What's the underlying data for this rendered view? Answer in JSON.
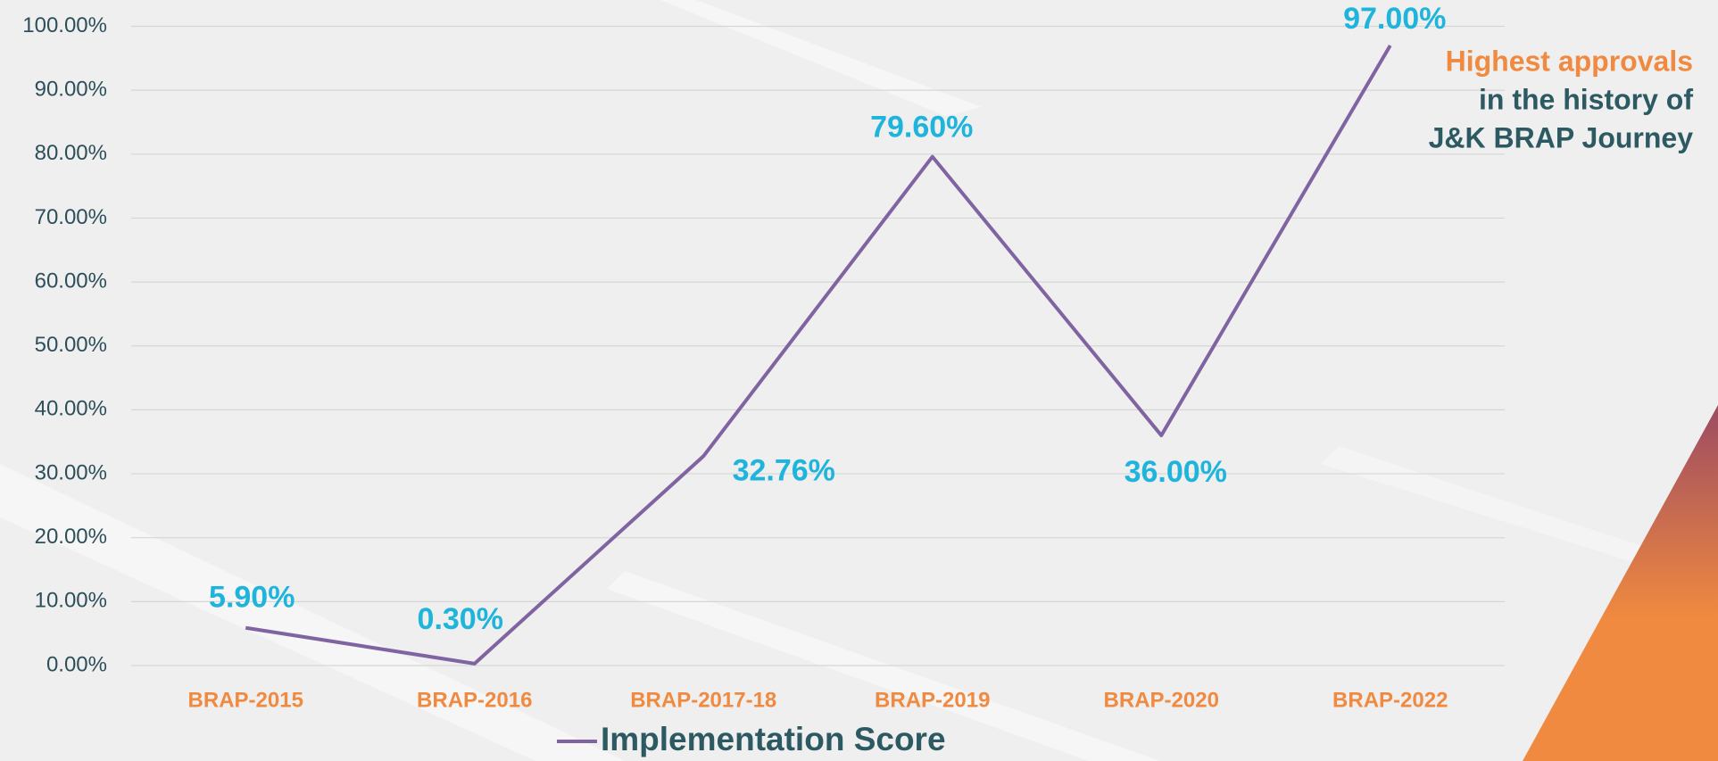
{
  "chart_data": {
    "type": "line",
    "categories": [
      "BRAP-2015",
      "BRAP-2016",
      "BRAP-2017-18",
      "BRAP-2019",
      "BRAP-2020",
      "BRAP-2022"
    ],
    "series": [
      {
        "name": "Implementation Score",
        "color": "#8064a2",
        "values": [
          5.9,
          0.3,
          32.76,
          79.6,
          36,
          97
        ],
        "value_labels": [
          "5.90%",
          "0.30%",
          "32.76%",
          "79.60%",
          "36.00%",
          "97.00%"
        ]
      }
    ],
    "ylim": [
      0,
      100
    ],
    "yticks": [
      {
        "value": 0,
        "label": "0.00%"
      },
      {
        "value": 10,
        "label": "10.00%"
      },
      {
        "value": 20,
        "label": "20.00%"
      },
      {
        "value": 30,
        "label": "30.00%"
      },
      {
        "value": 40,
        "label": "40.00%"
      },
      {
        "value": 50,
        "label": "50.00%"
      },
      {
        "value": 60,
        "label": "60.00%"
      },
      {
        "value": 70,
        "label": "70.00%"
      },
      {
        "value": 80,
        "label": "80.00%"
      },
      {
        "value": 90,
        "label": "90.00%"
      },
      {
        "value": 100,
        "label": "100.00%"
      }
    ],
    "grid": true,
    "annotation": [
      "Highest approvals",
      "in the history of",
      "J&K BRAP Journey"
    ]
  }
}
